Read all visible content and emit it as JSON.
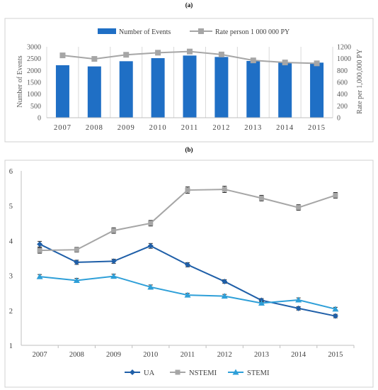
{
  "chart_data": [
    {
      "panel_label": "(a)",
      "type": "bar",
      "categories": [
        "2007",
        "2008",
        "2009",
        "2010",
        "2011",
        "2012",
        "2013",
        "2014",
        "2015"
      ],
      "series": [
        {
          "name": "Number of Events",
          "type": "bar",
          "axis": "left",
          "color": "#1f6fc5",
          "values": [
            2220,
            2170,
            2390,
            2520,
            2630,
            2570,
            2400,
            2330,
            2330
          ]
        },
        {
          "name": "Rate person 1 000 000 PY",
          "type": "line",
          "axis": "right",
          "color": "#a6a6a6",
          "values": [
            1055,
            995,
            1065,
            1100,
            1120,
            1070,
            970,
            935,
            920
          ]
        }
      ],
      "ylabel": "Number of Events",
      "ylabel_right": "Rate per 1,000,000 PY",
      "ylim": [
        0,
        3000
      ],
      "yticks": [
        0,
        500,
        1000,
        1500,
        2000,
        2500,
        3000
      ],
      "ylim_right": [
        0,
        1200
      ],
      "yticks_right": [
        0,
        200,
        400,
        600,
        800,
        1000,
        1200
      ],
      "legend_position": "top-center",
      "grid": "vertical"
    },
    {
      "panel_label": "(b)",
      "type": "line",
      "categories": [
        "2007",
        "2008",
        "2009",
        "2010",
        "2011",
        "2012",
        "2013",
        "2014",
        "2015"
      ],
      "series": [
        {
          "name": "UA",
          "color": "#1f5fa8",
          "marker": "diamond",
          "values": [
            3.9,
            3.38,
            3.41,
            3.85,
            3.31,
            2.83,
            2.29,
            2.06,
            1.84
          ],
          "err": [
            0.08,
            0.06,
            0.06,
            0.07,
            0.06,
            0.05,
            0.05,
            0.05,
            0.05
          ]
        },
        {
          "name": "NSTEMI",
          "color": "#a6a6a6",
          "marker": "square",
          "values": [
            3.72,
            3.74,
            4.29,
            4.5,
            5.45,
            5.47,
            5.22,
            4.95,
            5.3
          ],
          "err": [
            0.08,
            0.07,
            0.08,
            0.08,
            0.09,
            0.09,
            0.08,
            0.08,
            0.08
          ]
        },
        {
          "name": "STEMI",
          "color": "#2e9fd8",
          "marker": "triangle",
          "values": [
            2.97,
            2.86,
            2.98,
            2.67,
            2.44,
            2.41,
            2.21,
            2.3,
            2.04
          ],
          "err": [
            0.06,
            0.06,
            0.06,
            0.06,
            0.05,
            0.05,
            0.05,
            0.06,
            0.05
          ]
        }
      ],
      "ylim": [
        1,
        6
      ],
      "yticks": [
        1,
        2,
        3,
        4,
        5,
        6
      ],
      "legend_position": "bottom-center",
      "grid": "none"
    }
  ]
}
